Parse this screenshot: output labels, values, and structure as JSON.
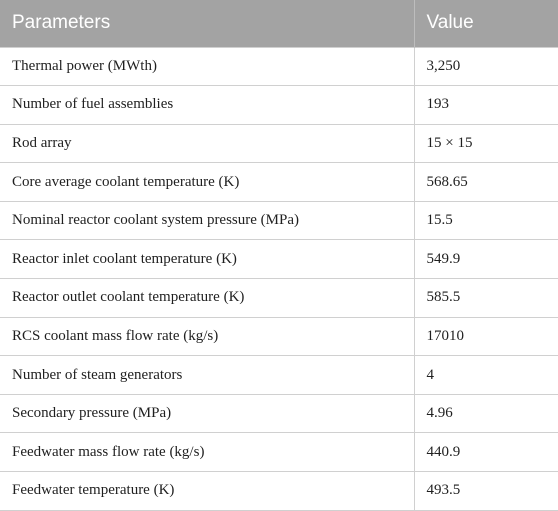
{
  "table": {
    "headers": [
      "Parameters",
      "Value"
    ],
    "rows": [
      [
        "Thermal power (MWth)",
        "3,250"
      ],
      [
        "Number of fuel assemblies",
        "193"
      ],
      [
        "Rod array",
        "15 × 15"
      ],
      [
        "Core average coolant temperature (K)",
        "568.65"
      ],
      [
        "Nominal reactor coolant system pressure (MPa)",
        "15.5"
      ],
      [
        "Reactor inlet coolant temperature (K)",
        "549.9"
      ],
      [
        "Reactor outlet coolant temperature (K)",
        "585.5"
      ],
      [
        "RCS coolant mass flow rate (kg/s)",
        "17010"
      ],
      [
        "Number of steam generators",
        "4"
      ],
      [
        "Secondary pressure (MPa)",
        "4.96"
      ],
      [
        "Feedwater mass flow rate (kg/s)",
        "440.9"
      ],
      [
        "Feedwater temperature (K)",
        "493.5"
      ]
    ]
  },
  "colors": {
    "header_bg": "#a3a3a3",
    "header_text": "#ffffff",
    "grid_line": "#d0d0d0"
  }
}
